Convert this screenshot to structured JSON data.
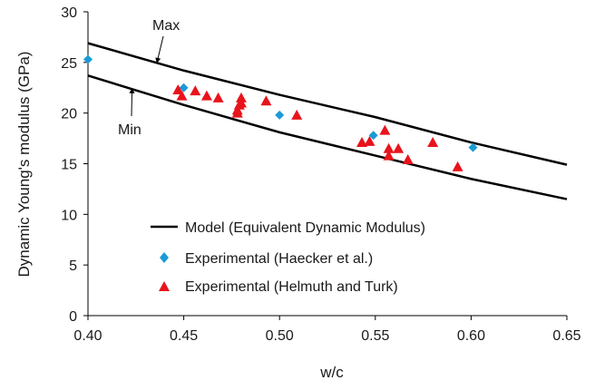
{
  "chart_data": {
    "type": "scatter",
    "xlabel": "w/c",
    "ylabel": "Dynamic Young's modulus (GPa)",
    "xlim": [
      0.4,
      0.65
    ],
    "ylim": [
      0,
      30
    ],
    "x_ticks": [
      "0.40",
      "0.45",
      "0.50",
      "0.55",
      "0.60",
      "0.65"
    ],
    "y_ticks": [
      "0",
      "5",
      "10",
      "15",
      "20",
      "25",
      "30"
    ],
    "grid": false,
    "legend_placement": "bottom-center",
    "series": [
      {
        "name": "Model (Equivalent Dynamic Modulus)",
        "kind": "line",
        "color": "#000000",
        "curves": [
          {
            "label": "Max",
            "x": [
              0.4,
              0.45,
              0.5,
              0.55,
              0.6,
              0.65
            ],
            "y": [
              26.9,
              24.2,
              21.8,
              19.6,
              17.1,
              14.9
            ]
          },
          {
            "label": "Min",
            "x": [
              0.4,
              0.45,
              0.5,
              0.55,
              0.6,
              0.65
            ],
            "y": [
              23.7,
              20.8,
              18.1,
              15.8,
              13.5,
              11.5
            ]
          }
        ]
      },
      {
        "name": "Experimental (Haecker et al.)",
        "kind": "scatter",
        "marker": "diamond",
        "color": "#1b9ad6",
        "x": [
          0.4,
          0.45,
          0.5,
          0.549,
          0.601
        ],
        "y": [
          25.3,
          22.5,
          19.8,
          17.8,
          16.6
        ]
      },
      {
        "name": "Experimental (Helmuth and Turk)",
        "kind": "scatter",
        "marker": "triangle",
        "color": "#e8141c",
        "x": [
          0.447,
          0.449,
          0.456,
          0.462,
          0.468,
          0.478,
          0.478,
          0.479,
          0.48,
          0.48,
          0.493,
          0.509,
          0.543,
          0.547,
          0.555,
          0.557,
          0.557,
          0.562,
          0.567,
          0.58,
          0.593
        ],
        "y": [
          22.3,
          21.7,
          22.2,
          21.7,
          21.5,
          20.0,
          20.3,
          20.8,
          21.5,
          21.0,
          21.2,
          19.8,
          17.1,
          17.2,
          18.3,
          15.8,
          16.5,
          16.5,
          15.4,
          17.1,
          14.7
        ]
      }
    ],
    "annotations": [
      {
        "text": "Max",
        "target_x": 0.436,
        "target_y": 25.0
      },
      {
        "text": "Min",
        "target_x": 0.423,
        "target_y": 22.4
      }
    ]
  }
}
